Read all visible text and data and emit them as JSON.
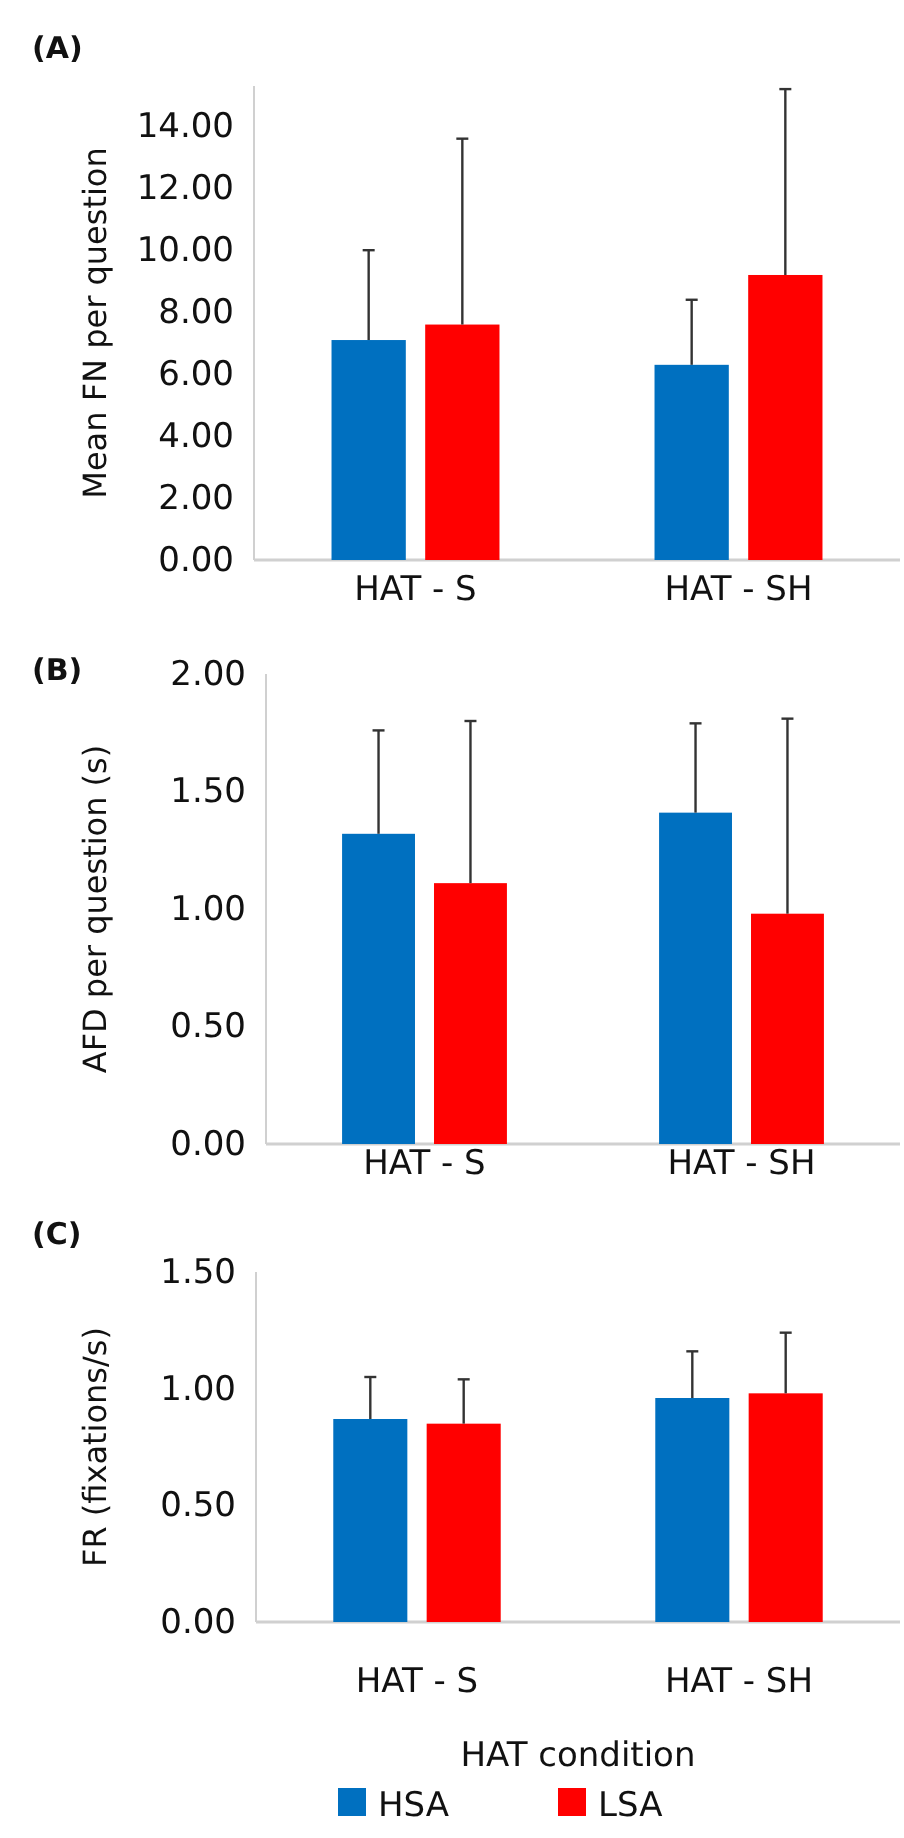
{
  "chart_data": [
    {
      "type": "bar",
      "title": "(A)",
      "ylabel": "Mean FN per question",
      "categories": [
        "HAT - S",
        "HAT - SH"
      ],
      "series": [
        {
          "color": "#0070c0",
          "values": [
            7.1,
            6.3
          ],
          "errors": [
            [
              7.1,
              10.0
            ],
            [
              6.3,
              8.4
            ]
          ]
        },
        {
          "color": "#ff0000",
          "values": [
            7.6,
            9.2
          ],
          "errors": [
            [
              7.6,
              13.6
            ],
            [
              9.2,
              15.2
            ]
          ]
        }
      ],
      "ylim": [
        0,
        15.3
      ],
      "yticks": [
        {
          "value": 0,
          "label": "0.00"
        },
        {
          "value": 2,
          "label": "2.00"
        },
        {
          "value": 4,
          "label": "4.00"
        },
        {
          "value": 6,
          "label": "6.00"
        },
        {
          "value": 8,
          "label": "8.00"
        },
        {
          "value": 10,
          "label": "10.00"
        },
        {
          "value": 12,
          "label": "12.00"
        },
        {
          "value": 14,
          "label": "14.00"
        }
      ]
    },
    {
      "type": "bar",
      "title": "(B)",
      "ylabel": "AFD per question (s)",
      "categories": [
        "HAT - S",
        "HAT - SH"
      ],
      "series": [
        {
          "color": "#0070c0",
          "values": [
            1.32,
            1.41
          ],
          "errors": [
            [
              1.32,
              1.76
            ],
            [
              1.41,
              1.79
            ]
          ]
        },
        {
          "color": "#ff0000",
          "values": [
            1.11,
            0.98
          ],
          "errors": [
            [
              1.11,
              1.8
            ],
            [
              0.98,
              1.81
            ]
          ]
        }
      ],
      "ylim": [
        0,
        2
      ],
      "yticks": [
        {
          "value": 0,
          "label": "0.00"
        },
        {
          "value": 0.5,
          "label": "0.50"
        },
        {
          "value": 1,
          "label": "1.00"
        },
        {
          "value": 1.5,
          "label": "1.50"
        },
        {
          "value": 2,
          "label": "2.00"
        }
      ]
    },
    {
      "type": "bar",
      "title": "(C)",
      "ylabel": "FR (fixations/s)",
      "xlabel": "HAT condition",
      "categories": [
        "HAT - S",
        "HAT - SH"
      ],
      "series": [
        {
          "name": "HSA",
          "color": "#0070c0",
          "values": [
            0.87,
            0.96
          ],
          "errors": [
            [
              0.87,
              1.05
            ],
            [
              0.96,
              1.16
            ]
          ]
        },
        {
          "name": "LSA",
          "color": "#ff0000",
          "values": [
            0.85,
            0.98
          ],
          "errors": [
            [
              0.85,
              1.04
            ],
            [
              0.98,
              1.24
            ]
          ]
        }
      ],
      "ylim": [
        0,
        1.5
      ],
      "yticks": [
        {
          "value": 0,
          "label": "0.00"
        },
        {
          "value": 0.5,
          "label": "0.50"
        },
        {
          "value": 1,
          "label": "1.00"
        },
        {
          "value": 1.5,
          "label": "1.50"
        }
      ],
      "legend": "bottom"
    }
  ]
}
